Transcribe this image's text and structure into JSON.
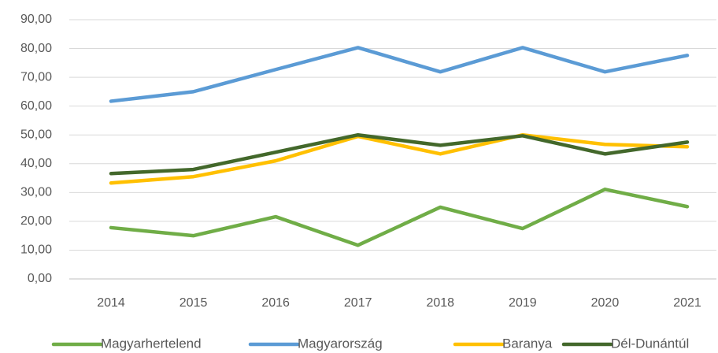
{
  "chart_data": {
    "type": "line",
    "categories": [
      "2014",
      "2015",
      "2016",
      "2017",
      "2018",
      "2019",
      "2020",
      "2021"
    ],
    "series": [
      {
        "name": "Magyarhertelend",
        "color": "#70ad47",
        "values": [
          17.8,
          15.0,
          21.6,
          11.7,
          24.9,
          17.5,
          31.1,
          25.1
        ]
      },
      {
        "name": "Magyarország",
        "color": "#5b9bd5",
        "values": [
          61.7,
          65.0,
          72.7,
          80.3,
          71.9,
          80.3,
          71.9,
          77.6
        ]
      },
      {
        "name": "Baranya",
        "color": "#ffc000",
        "values": [
          33.3,
          35.5,
          41.0,
          49.5,
          43.4,
          50.0,
          46.7,
          45.9
        ]
      },
      {
        "name": "Dél-Dunántúl",
        "color": "#43682b",
        "values": [
          36.6,
          38.0,
          44.0,
          50.0,
          46.4,
          49.7,
          43.4,
          47.5
        ]
      }
    ],
    "ylim": [
      0,
      90
    ],
    "yticks": [
      {
        "value": 0,
        "label": "0,00"
      },
      {
        "value": 10,
        "label": "10,00"
      },
      {
        "value": 20,
        "label": "20,00"
      },
      {
        "value": 30,
        "label": "30,00"
      },
      {
        "value": 40,
        "label": "40,00"
      },
      {
        "value": 50,
        "label": "50,00"
      },
      {
        "value": 60,
        "label": "60,00"
      },
      {
        "value": 70,
        "label": "70,00"
      },
      {
        "value": 80,
        "label": "80,00"
      },
      {
        "value": 90,
        "label": "90,00"
      }
    ],
    "grid": true,
    "legend": "bottom"
  }
}
